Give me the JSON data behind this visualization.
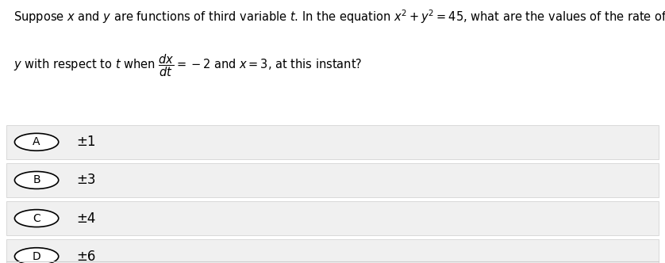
{
  "background_color": "#ffffff",
  "text_color": "#000000",
  "gray_color": "#f0f0f0",
  "border_color": "#cccccc",
  "question_line1": "Suppose $x$ and $y$ are functions of third variable $t$. In the equation $x^2+y^2=45$, what are the values of the rate of change in",
  "question_line2": "$y$ with respect to $t$ when $\\dfrac{dx}{dt}=-2$ and $x=3$, at this instant?",
  "options": [
    {
      "label": "A",
      "value": "±1"
    },
    {
      "label": "B",
      "value": "±3"
    },
    {
      "label": "C",
      "value": "±4"
    },
    {
      "label": "D",
      "value": "±6"
    }
  ],
  "fontsize_question": 10.5,
  "fontsize_option": 12
}
